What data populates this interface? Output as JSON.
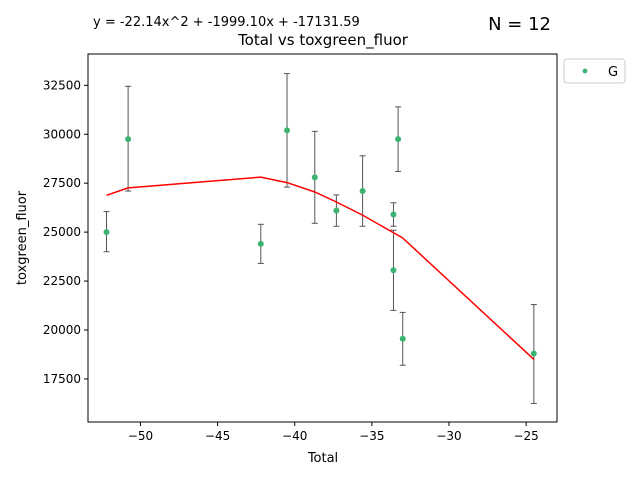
{
  "chart_data": {
    "type": "scatter",
    "title": "Total vs toxgreen_fluor",
    "equation": "y = -22.14x^2 + -1999.10x + -17131.59",
    "n_label": "N = 12",
    "xlabel": "Total",
    "ylabel": "toxgreen_fluor",
    "xlim": [
      -53.4,
      -23.0
    ],
    "ylim": [
      15300,
      34100
    ],
    "xticks": [
      -50,
      -45,
      -40,
      -35,
      -30,
      -25
    ],
    "xtick_labels": [
      "−50",
      "−45",
      "−40",
      "−35",
      "−30",
      "−25"
    ],
    "yticks": [
      17500,
      20000,
      22500,
      25000,
      27500,
      30000,
      32500
    ],
    "ytick_labels": [
      "17500",
      "20000",
      "22500",
      "25000",
      "27500",
      "30000",
      "32500"
    ],
    "grid": false,
    "legend_position": "outside-top-right",
    "series": [
      {
        "name": "G",
        "color": "#3cb371",
        "points": [
          {
            "x": -52.2,
            "y": 25000,
            "err_low": 24000,
            "err_high": 26050
          },
          {
            "x": -50.8,
            "y": 29750,
            "err_low": 27100,
            "err_high": 32450
          },
          {
            "x": -42.2,
            "y": 24400,
            "err_low": 23400,
            "err_high": 25400
          },
          {
            "x": -40.5,
            "y": 30200,
            "err_low": 27300,
            "err_high": 33100
          },
          {
            "x": -38.7,
            "y": 27800,
            "err_low": 25450,
            "err_high": 30150
          },
          {
            "x": -37.3,
            "y": 26100,
            "err_low": 25300,
            "err_high": 26900
          },
          {
            "x": -35.6,
            "y": 27100,
            "err_low": 25300,
            "err_high": 28900
          },
          {
            "x": -33.6,
            "y": 23050,
            "err_low": 21000,
            "err_high": 25100
          },
          {
            "x": -33.6,
            "y": 25900,
            "err_low": 25300,
            "err_high": 26500
          },
          {
            "x": -33.3,
            "y": 29750,
            "err_low": 28100,
            "err_high": 31400
          },
          {
            "x": -33.0,
            "y": 19550,
            "err_low": 18200,
            "err_high": 20900
          },
          {
            "x": -24.5,
            "y": 18800,
            "err_low": 16250,
            "err_high": 21300
          }
        ]
      }
    ],
    "fit_line": {
      "color": "#ff0000",
      "points": [
        {
          "x": -52.2,
          "y": 26880
        },
        {
          "x": -50.8,
          "y": 27260
        },
        {
          "x": -42.2,
          "y": 27810
        },
        {
          "x": -40.5,
          "y": 27530
        },
        {
          "x": -38.7,
          "y": 27050
        },
        {
          "x": -37.3,
          "y": 26540
        },
        {
          "x": -35.6,
          "y": 25870
        },
        {
          "x": -33.0,
          "y": 24700
        },
        {
          "x": -24.5,
          "y": 18500
        }
      ]
    },
    "errorbar_color": "#555555"
  }
}
